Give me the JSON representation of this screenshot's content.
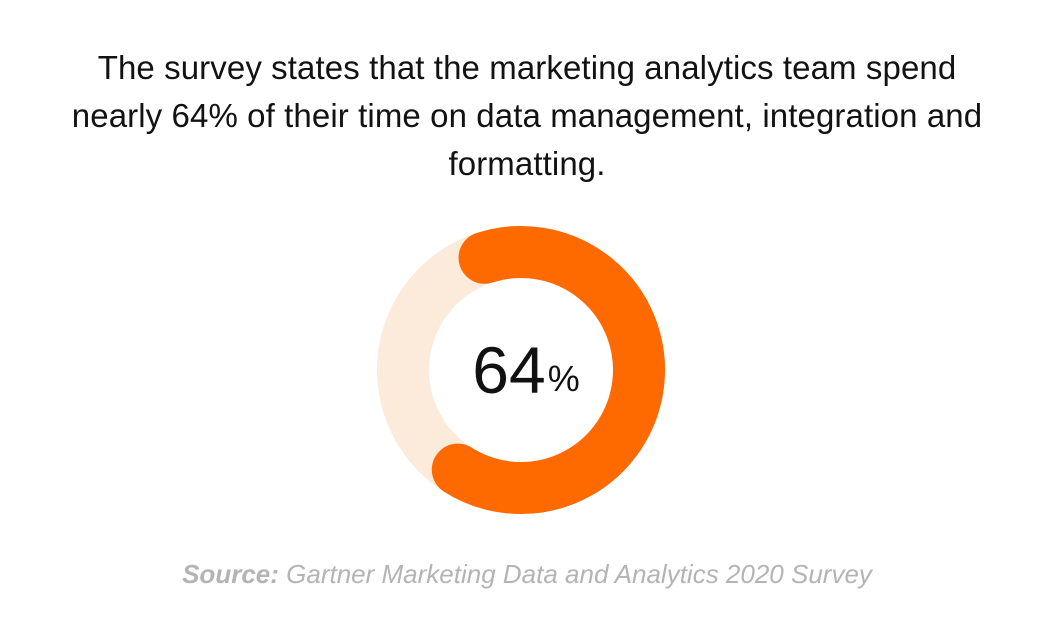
{
  "headline": "The survey states that the marketing analytics team spend nearly 64% of their time on data management, integration and formatting.",
  "center_label": {
    "number": "64",
    "unit": "%"
  },
  "source": {
    "label": "Source:",
    "text": " Gartner Marketing Data and Analytics 2020 Survey"
  },
  "colors": {
    "accent": "#FF6A00",
    "track": "#FCEADB",
    "text": "#121212",
    "source": "#B4B4B4"
  },
  "chart_data": {
    "type": "pie",
    "values": [
      64,
      36
    ],
    "ylim": [
      0,
      100
    ]
  }
}
